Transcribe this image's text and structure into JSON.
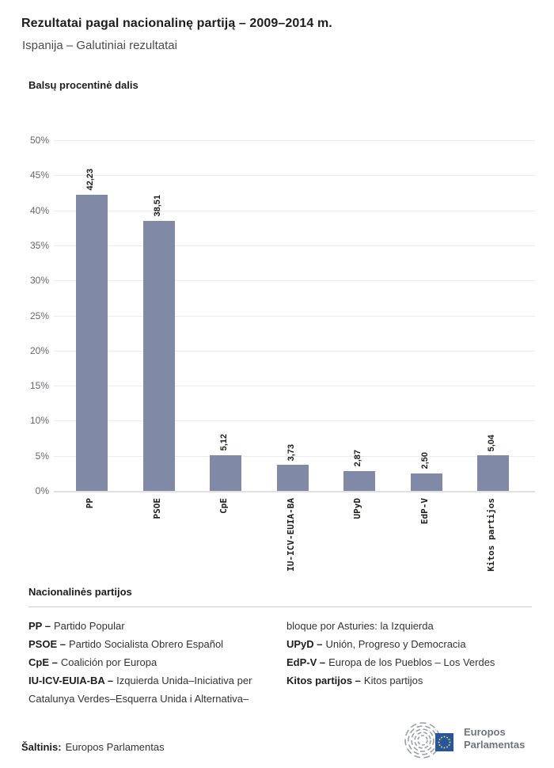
{
  "header": {
    "title": "Rezultatai pagal nacionalinę partiją – 2009–2014 m.",
    "subtitle": "Ispanija – Galutiniai rezultatai"
  },
  "chart": {
    "heading": "Balsų procentinė dalis"
  },
  "chart_data": {
    "type": "bar",
    "title": "Balsų procentinė dalis",
    "categories": [
      "PP",
      "PSOE",
      "CpE",
      "IU-ICV-EUIA-BA",
      "UPyD",
      "EdP-V",
      "Kitos partijos"
    ],
    "values": [
      42.23,
      38.51,
      5.12,
      3.73,
      2.87,
      2.5,
      5.04
    ],
    "value_labels": [
      "42,23",
      "38,51",
      "5,12",
      "3,73",
      "2,87",
      "2,50",
      "5,04"
    ],
    "xlabel": "",
    "ylabel": "",
    "ylim": [
      0,
      50
    ],
    "ytick_step": 5,
    "ytick_suffix": "%",
    "grid": true,
    "legend_position": "none",
    "bar_color": "#8089a5",
    "gridline_color": "#ececec"
  },
  "legend": {
    "heading": "Nacionalinės partijos",
    "columns": [
      [
        {
          "term": "PP –",
          "definition": "Partido Popular"
        },
        {
          "term": "PSOE –",
          "definition": "Partido Socialista Obrero Español"
        },
        {
          "term": "CpE –",
          "definition": "Coalición por Europa"
        },
        {
          "term": "IU-ICV-EUIA-BA –",
          "definition": "Izquierda Unida–Iniciativa per Catalunya Verdes–Esquerra Unida i Alternativa–"
        }
      ],
      [
        {
          "term": "",
          "definition": "bloque por Asturies: la Izquierda"
        },
        {
          "term": "UPyD –",
          "definition": "Unión, Progreso y Democracia"
        },
        {
          "term": "EdP-V –",
          "definition": "Europa de los Pueblos – Los Verdes"
        },
        {
          "term": "Kitos partijos –",
          "definition": "Kitos partijos"
        }
      ]
    ]
  },
  "footer": {
    "source_label": "Šaltinis:",
    "source_value": "Europos Parlamentas",
    "logo_line1": "Europos",
    "logo_line2": "Parlamentas"
  },
  "colors": {
    "bar": "#8089a5",
    "title_text": "#1d1d1b",
    "subtitle_text": "#4b4b4b",
    "tick_text": "#63676b",
    "logo_blue": "#2456a4",
    "logo_star_yellow": "#f7d117",
    "logo_gray": "#98a0a8"
  }
}
